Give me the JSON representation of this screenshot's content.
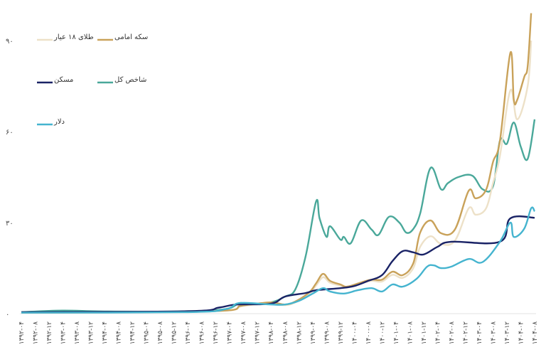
{
  "chart_data": {
    "type": "line",
    "title": "",
    "xlabel": "",
    "ylabel": "",
    "ylim": [
      0,
      100
    ],
    "yticks": [
      {
        "v": 0,
        "label": "۰"
      },
      {
        "v": 30,
        "label": "۳۰"
      },
      {
        "v": 60,
        "label": "۶۰"
      },
      {
        "v": 90,
        "label": "۹۰"
      }
    ],
    "xrange": [
      "1392-04",
      "1404-08"
    ],
    "xticks": [
      "۱۳۹۲-۰۴",
      "۱۳۹۲-۰۸",
      "۱۳۹۲-۱۲",
      "۱۳۹۳-۰۴",
      "۱۳۹۳-۰۸",
      "۱۳۹۳-۱۲",
      "۱۳۹۴-۰۴",
      "۱۳۹۴-۰۸",
      "۱۳۹۴-۱۲",
      "۱۳۹۵-۰۴",
      "۱۳۹۵-۰۸",
      "۱۳۹۵-۱۲",
      "۱۳۹۶-۰۴",
      "۱۳۹۶-۰۸",
      "۱۳۹۶-۱۲",
      "۱۳۹۷-۰۴",
      "۱۳۹۷-۰۸",
      "۱۳۹۷-۱۲",
      "۱۳۹۸-۰۴",
      "۱۳۹۸-۰۸",
      "۱۳۹۸-۱۲",
      "۱۳۹۹-۰۴",
      "۱۳۹۹-۰۸",
      "۱۳۹۹-۱۲",
      "۱۴۰۰-۰۴",
      "۱۴۰۰-۰۸",
      "۱۴۰۰-۱۲",
      "۱۴۰۱-۰۴",
      "۱۴۰۱-۰۸",
      "۱۴۰۱-۱۲",
      "۱۴۰۲-۰۴",
      "۱۴۰۲-۰۸",
      "۱۴۰۲-۱۲",
      "۱۴۰۳-۰۴",
      "۱۴۰۳-۰۸",
      "۱۴۰۳-۱۲",
      "۱۴۰۴-۰۴",
      "۱۴۰۴-۰۸"
    ],
    "grid": false,
    "legend_position": "top-left",
    "series": [
      {
        "name": "شاخص کل",
        "color": "#4aa89a",
        "points": [
          [
            "1392-04",
            0.5
          ],
          [
            "1393-04",
            1
          ],
          [
            "1394-05",
            0.7
          ],
          [
            "1396-04",
            0.8
          ],
          [
            "1397-03",
            1.5
          ],
          [
            "1397-07",
            3.5
          ],
          [
            "1397-10",
            3
          ],
          [
            "1398-04",
            3.7
          ],
          [
            "1398-08",
            5.6
          ],
          [
            "1398-11",
            8
          ],
          [
            "1399-02",
            19
          ],
          [
            "1399-05",
            37
          ],
          [
            "1399-06",
            31.4
          ],
          [
            "1399-08",
            25.3
          ],
          [
            "1399-09",
            28.8
          ],
          [
            "1399-12",
            24.4
          ],
          [
            "1400-01",
            25.3
          ],
          [
            "1400-03",
            23.2
          ],
          [
            "1400-06",
            30.7
          ],
          [
            "1400-09",
            27.7
          ],
          [
            "1400-11",
            26
          ],
          [
            "1401-02",
            31.9
          ],
          [
            "1401-05",
            30
          ],
          [
            "1401-07",
            26.7
          ],
          [
            "1401-09",
            27.9
          ],
          [
            "1401-11",
            33
          ],
          [
            "1402-02",
            48
          ],
          [
            "1402-05",
            41
          ],
          [
            "1402-07",
            43
          ],
          [
            "1402-10",
            45
          ],
          [
            "1403-02",
            45.5
          ],
          [
            "1403-05",
            41
          ],
          [
            "1403-08",
            42
          ],
          [
            "1403-10",
            57
          ],
          [
            "1403-12",
            56
          ],
          [
            "1404-02",
            63
          ],
          [
            "1404-04",
            55
          ],
          [
            "1404-06",
            51
          ],
          [
            "1404-08",
            64
          ]
        ]
      },
      {
        "name": "طلای ۱۸ عیار",
        "color": "#ede1c8",
        "points": [
          [
            "1392-04",
            0.3
          ],
          [
            "1395-04",
            0.5
          ],
          [
            "1397-03",
            1
          ],
          [
            "1397-07",
            2.3
          ],
          [
            "1397-10",
            2.8
          ],
          [
            "1398-04",
            3.4
          ],
          [
            "1398-08",
            2.8
          ],
          [
            "1398-11",
            3.7
          ],
          [
            "1399-03",
            6.5
          ],
          [
            "1399-05",
            9.3
          ],
          [
            "1399-07",
            12
          ],
          [
            "1399-09",
            10.2
          ],
          [
            "1399-12",
            9.2
          ],
          [
            "1400-02",
            8.6
          ],
          [
            "1400-06",
            10
          ],
          [
            "1400-09",
            10.8
          ],
          [
            "1400-12",
            10.6
          ],
          [
            "1401-03",
            12.8
          ],
          [
            "1401-06",
            11.8
          ],
          [
            "1401-09",
            15
          ],
          [
            "1401-11",
            22
          ],
          [
            "1402-02",
            25.5
          ],
          [
            "1402-05",
            23
          ],
          [
            "1402-09",
            24
          ],
          [
            "1403-01",
            34.7
          ],
          [
            "1403-03",
            32.6
          ],
          [
            "1403-06",
            34.7
          ],
          [
            "1403-08",
            43
          ],
          [
            "1403-10",
            52
          ],
          [
            "1404-01",
            73.6
          ],
          [
            "1404-03",
            64
          ],
          [
            "1404-06",
            75
          ],
          [
            "1404-07",
            90
          ]
        ]
      },
      {
        "name": "سکه امامی",
        "color": "#c9a25a",
        "points": [
          [
            "1392-04",
            0.3
          ],
          [
            "1395-04",
            0.5
          ],
          [
            "1397-03",
            1
          ],
          [
            "1397-07",
            2.5
          ],
          [
            "1397-10",
            3
          ],
          [
            "1398-04",
            3.7
          ],
          [
            "1398-08",
            3
          ],
          [
            "1398-11",
            4
          ],
          [
            "1399-03",
            7
          ],
          [
            "1399-05",
            10
          ],
          [
            "1399-07",
            13.1
          ],
          [
            "1399-09",
            10.8
          ],
          [
            "1399-12",
            9.6
          ],
          [
            "1400-02",
            8.9
          ],
          [
            "1400-06",
            10.3
          ],
          [
            "1400-09",
            11.2
          ],
          [
            "1400-12",
            11.2
          ],
          [
            "1401-03",
            13.8
          ],
          [
            "1401-06",
            12.7
          ],
          [
            "1401-09",
            16.6
          ],
          [
            "1401-11",
            26.7
          ],
          [
            "1402-02",
            30.7
          ],
          [
            "1402-05",
            26.5
          ],
          [
            "1402-09",
            27.7
          ],
          [
            "1403-01",
            40.5
          ],
          [
            "1403-03",
            38
          ],
          [
            "1403-06",
            40.8
          ],
          [
            "1403-08",
            50
          ],
          [
            "1403-10",
            57
          ],
          [
            "1404-01",
            86
          ],
          [
            "1404-02",
            70.5
          ],
          [
            "1404-03",
            70.5
          ],
          [
            "1404-05",
            78
          ],
          [
            "1404-06",
            81.5
          ],
          [
            "1404-07",
            99
          ]
        ]
      },
      {
        "name": "مسکن",
        "color": "#1a2366",
        "points": [
          [
            "1392-04",
            0.5
          ],
          [
            "1396-04",
            0.8
          ],
          [
            "1397-01",
            2
          ],
          [
            "1397-06",
            3
          ],
          [
            "1398-04",
            3.3
          ],
          [
            "1398-08",
            5.6
          ],
          [
            "1399-02",
            6.8
          ],
          [
            "1399-05",
            7.7
          ],
          [
            "1399-12",
            8.4
          ],
          [
            "1400-04",
            9.1
          ],
          [
            "1400-08",
            10.8
          ],
          [
            "1400-12",
            12.7
          ],
          [
            "1401-03",
            17.3
          ],
          [
            "1401-06",
            20.6
          ],
          [
            "1401-09",
            20.2
          ],
          [
            "1401-12",
            19.5
          ],
          [
            "1402-04",
            22
          ],
          [
            "1402-08",
            23.7
          ],
          [
            "1403-10",
            23.7
          ],
          [
            "1404-01",
            31.4
          ],
          [
            "1404-08",
            31.6
          ]
        ]
      },
      {
        "name": "دلار",
        "color": "#45b4cf",
        "points": [
          [
            "1392-04",
            0.3
          ],
          [
            "1396-04",
            0.5
          ],
          [
            "1397-03",
            1.5
          ],
          [
            "1397-07",
            3.5
          ],
          [
            "1398-04",
            3
          ],
          [
            "1398-08",
            3
          ],
          [
            "1398-12",
            4.2
          ],
          [
            "1399-04",
            6.6
          ],
          [
            "1399-07",
            8.4
          ],
          [
            "1399-09",
            7.3
          ],
          [
            "1400-01",
            6.6
          ],
          [
            "1400-05",
            7.7
          ],
          [
            "1400-09",
            8.4
          ],
          [
            "1400-12",
            7.3
          ],
          [
            "1401-03",
            9.6
          ],
          [
            "1401-06",
            8.9
          ],
          [
            "1401-10",
            11.5
          ],
          [
            "1402-01",
            15.5
          ],
          [
            "1402-03",
            15.9
          ],
          [
            "1402-05",
            15
          ],
          [
            "1402-08",
            15.5
          ],
          [
            "1403-01",
            18
          ],
          [
            "1403-05",
            17
          ],
          [
            "1403-10",
            23.7
          ],
          [
            "1404-01",
            30
          ],
          [
            "1404-02",
            25.3
          ],
          [
            "1404-05",
            28
          ],
          [
            "1404-07",
            34.7
          ],
          [
            "1404-08",
            33.7
          ]
        ]
      }
    ]
  }
}
